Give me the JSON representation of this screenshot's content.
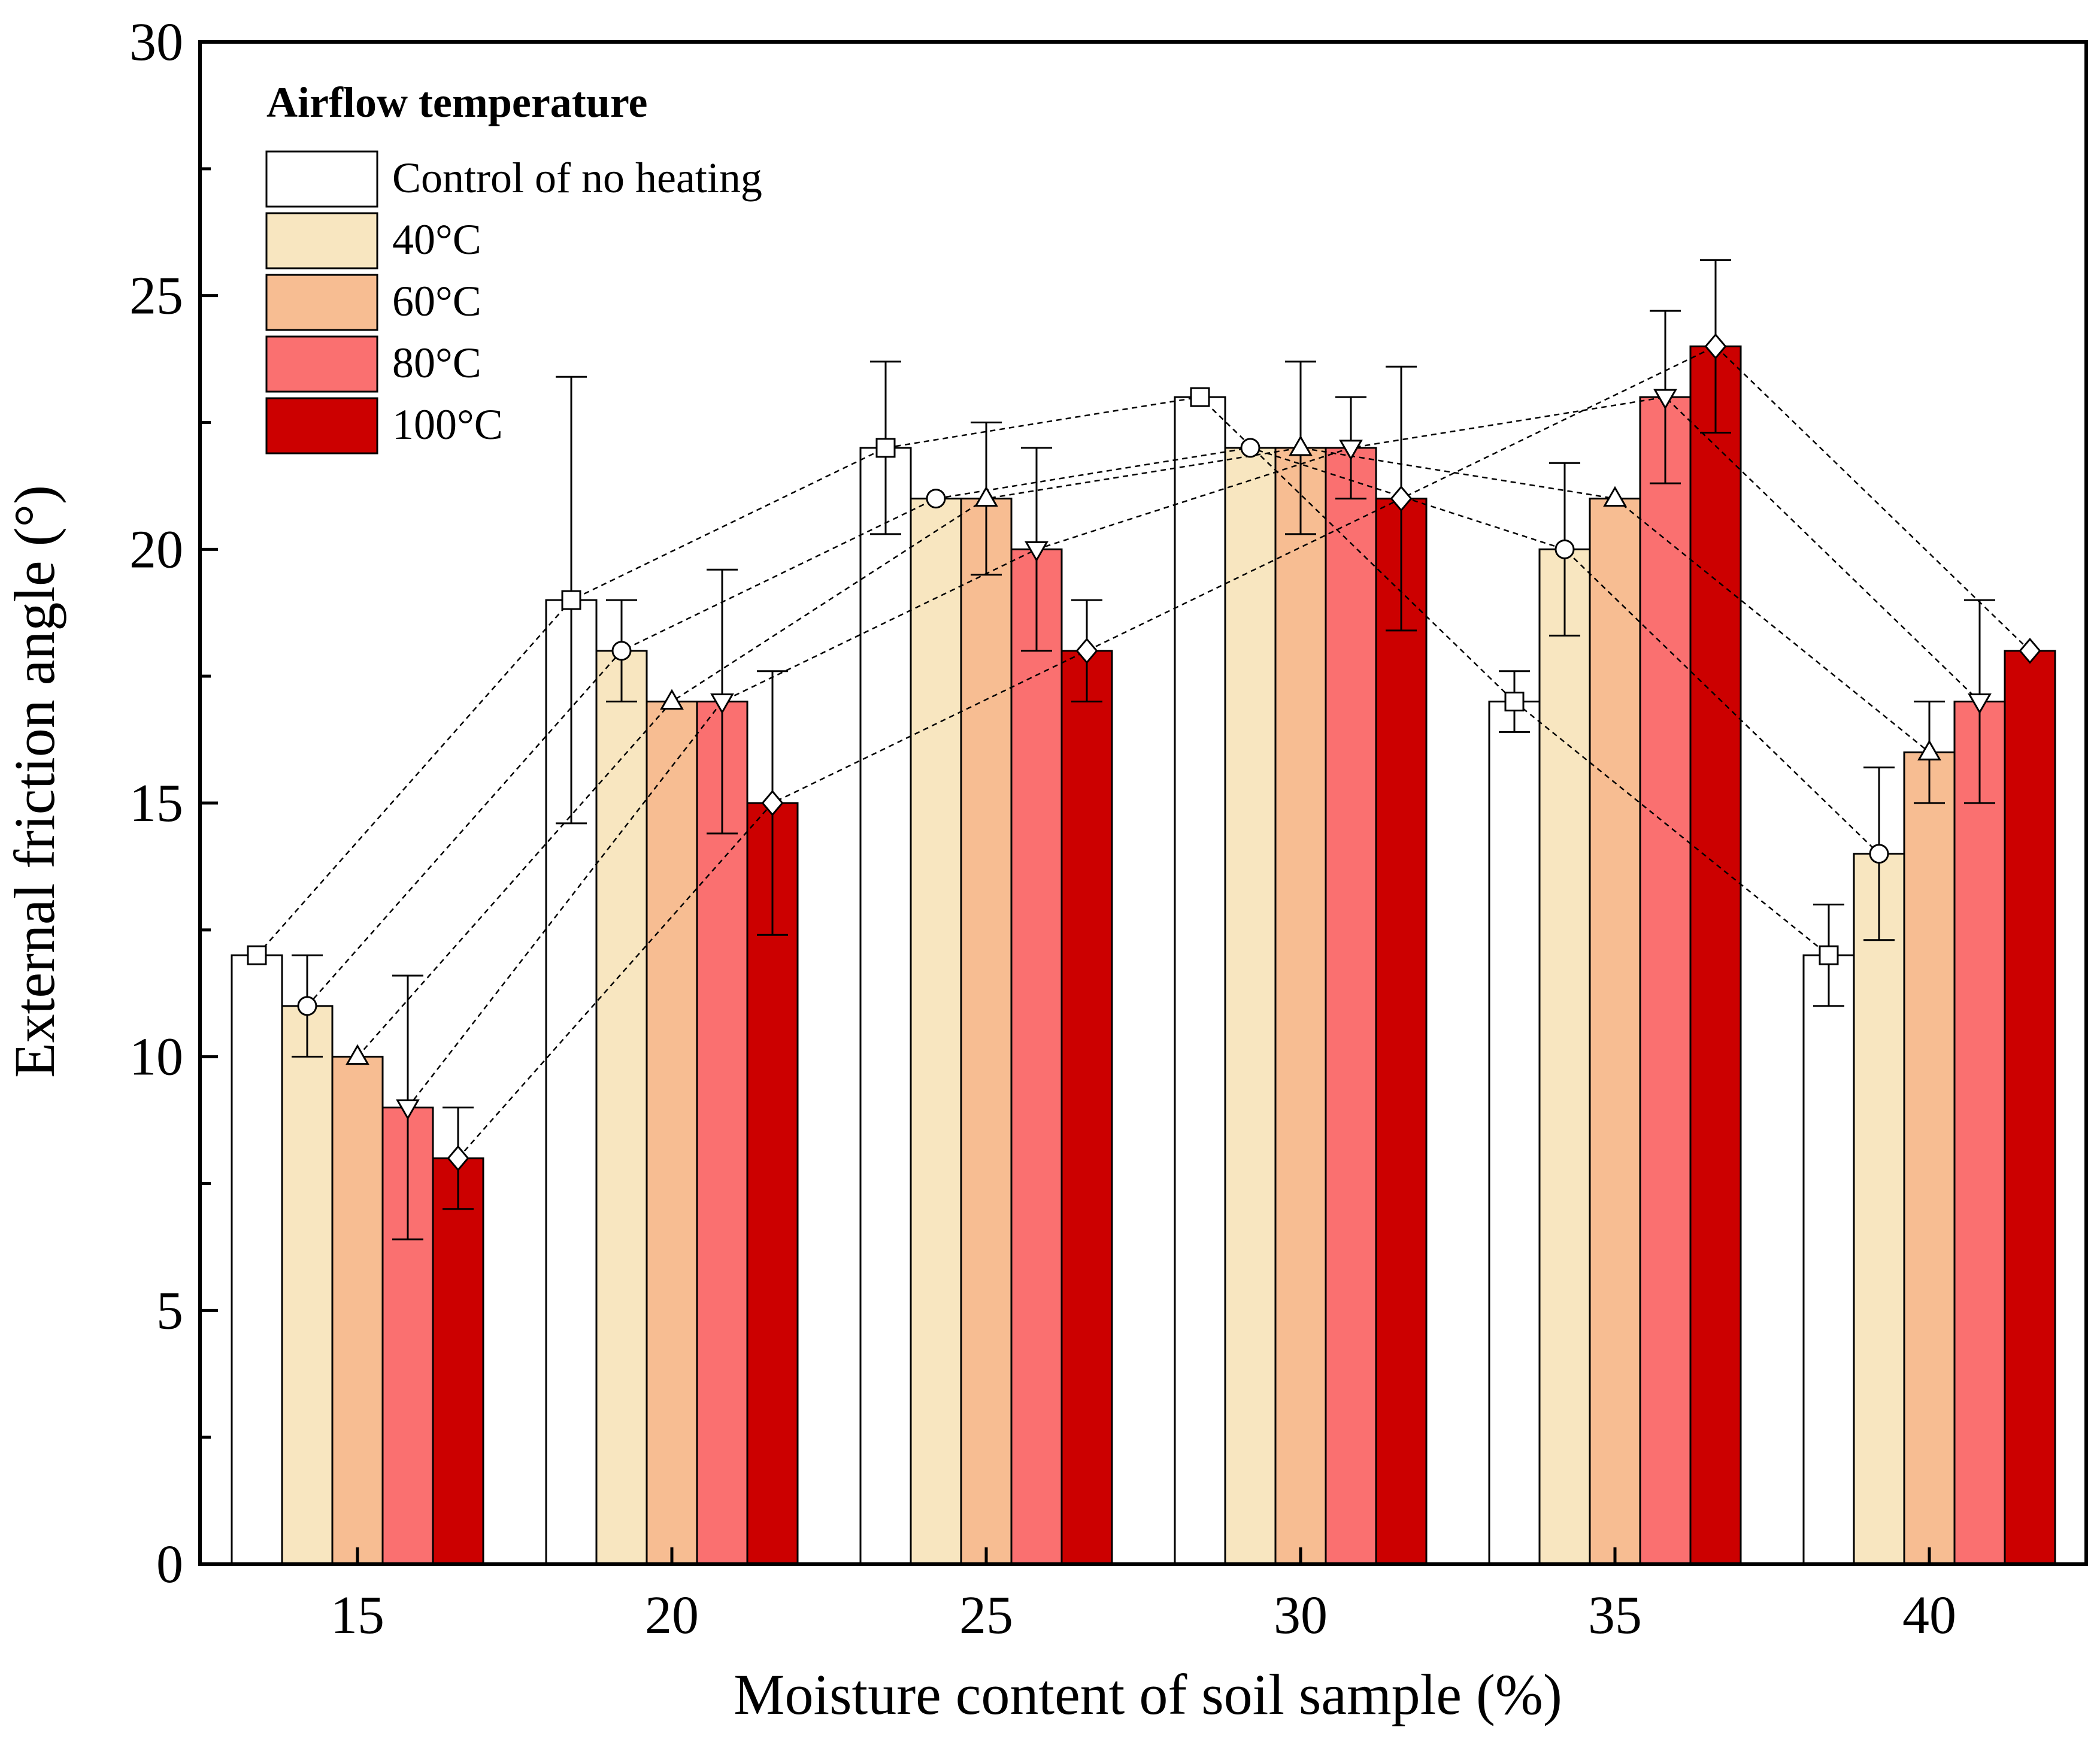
{
  "chart_data": {
    "type": "bar",
    "title": "",
    "xlabel": "Moisture content of soil sample (%)",
    "ylabel": "External friction angle (°)",
    "ylim": [
      0,
      30
    ],
    "yticks": [
      0,
      5,
      10,
      15,
      20,
      25,
      30
    ],
    "categories": [
      "15",
      "20",
      "25",
      "30",
      "35",
      "40"
    ],
    "legend": {
      "title": "Airflow temperature",
      "position": "top-left"
    },
    "series": [
      {
        "name": "Control of no heating",
        "color": "#ffffff",
        "marker": "square",
        "values": [
          12,
          19,
          22,
          23,
          17,
          12
        ],
        "errors": [
          0,
          4.4,
          1.7,
          0,
          0.6,
          1.0
        ]
      },
      {
        "name": "40°C",
        "color": "#f8e6c0",
        "marker": "circle",
        "values": [
          11,
          18,
          21,
          22,
          20,
          14
        ],
        "errors": [
          1.0,
          1.0,
          0,
          0,
          1.7,
          1.7
        ]
      },
      {
        "name": "60°C",
        "color": "#f7bd92",
        "marker": "triangle-up",
        "values": [
          10,
          17,
          21,
          22,
          21,
          16
        ],
        "errors": [
          0,
          0,
          1.5,
          1.7,
          0,
          1.0
        ]
      },
      {
        "name": "80°C",
        "color": "#fa7070",
        "marker": "triangle-down",
        "values": [
          9,
          17,
          20,
          22,
          23,
          17
        ],
        "errors": [
          2.6,
          2.6,
          2.0,
          1.0,
          1.7,
          2.0
        ]
      },
      {
        "name": "100°C",
        "color": "#cc0000",
        "marker": "diamond",
        "values": [
          8,
          15,
          18,
          21,
          24,
          18
        ],
        "errors": [
          1.0,
          2.6,
          1.0,
          2.6,
          1.7,
          0
        ]
      }
    ]
  }
}
